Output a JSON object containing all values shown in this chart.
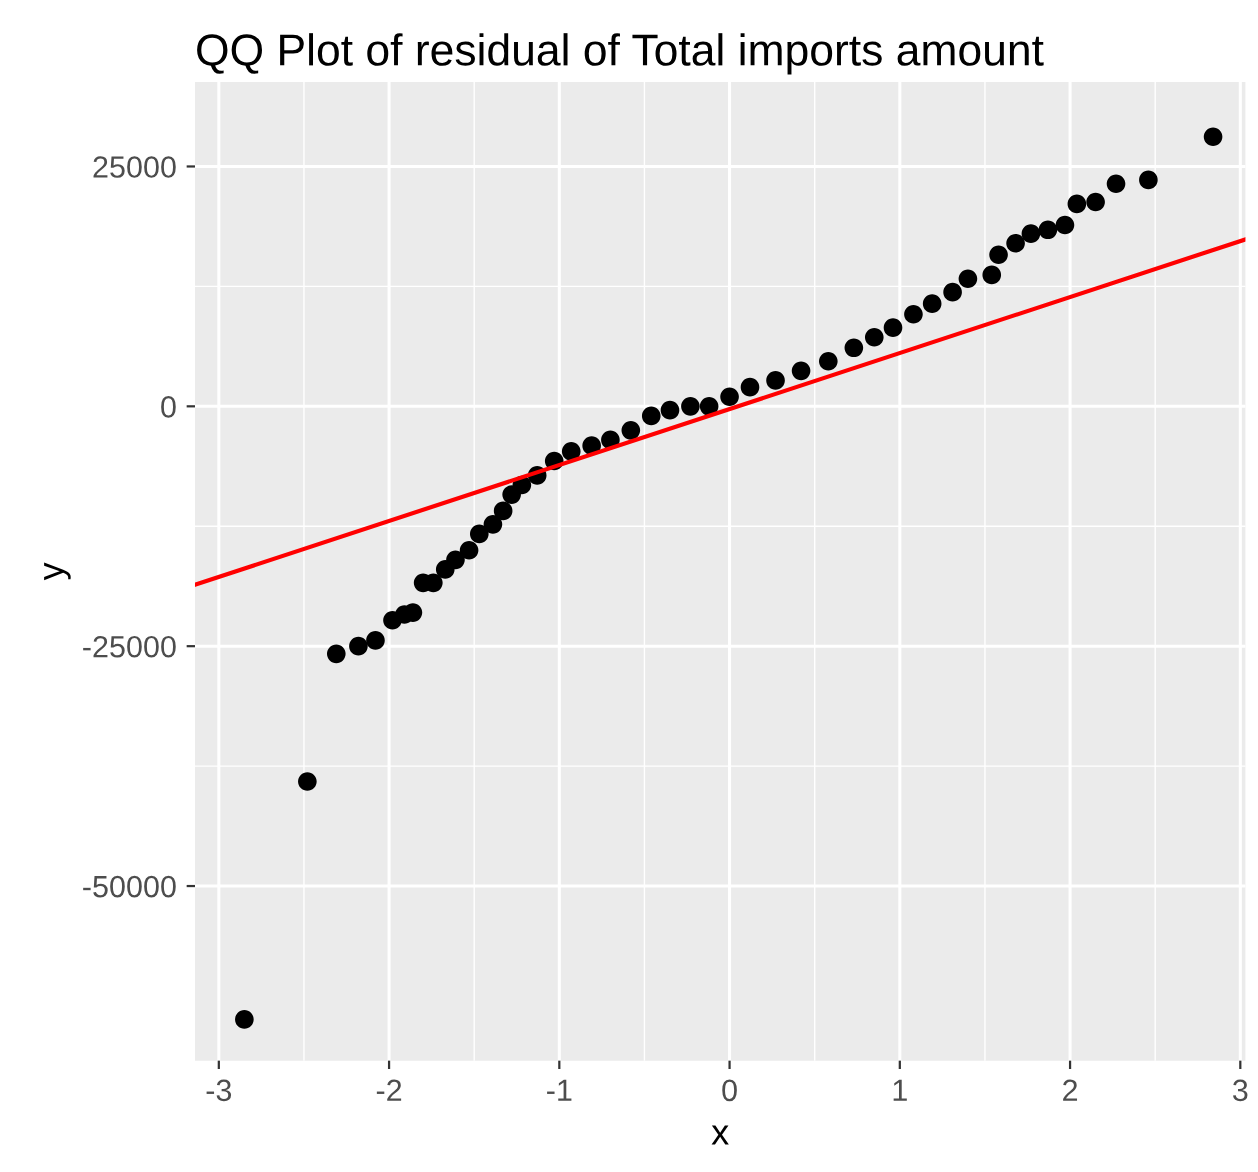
{
  "chart_data": {
    "type": "scatter",
    "title": "QQ Plot of residual of Total imports amount",
    "xlabel": "x",
    "ylabel": "y",
    "xlim": [
      -3.14,
      3.03
    ],
    "ylim": [
      -68200,
      33800
    ],
    "xticks": [
      -3,
      -2,
      -1,
      0,
      1,
      2,
      3
    ],
    "yticks": [
      -50000,
      -25000,
      0,
      25000
    ],
    "grid": true,
    "series": [
      {
        "marker": "circle",
        "color": "#000000",
        "x": [
          -2.85,
          -2.48,
          -2.31,
          -2.18,
          -2.08,
          -1.98,
          -1.91,
          -1.86,
          -1.8,
          -1.74,
          -1.67,
          -1.61,
          -1.53,
          -1.47,
          -1.39,
          -1.33,
          -1.28,
          -1.22,
          -1.13,
          -1.03,
          -0.93,
          -0.81,
          -0.7,
          -0.58,
          -0.46,
          -0.35,
          -0.23,
          -0.12,
          0.0,
          0.12,
          0.27,
          0.42,
          0.58,
          0.73,
          0.85,
          0.96,
          1.08,
          1.19,
          1.31,
          1.4,
          1.54,
          1.58,
          1.68,
          1.77,
          1.87,
          1.97,
          2.04,
          2.15,
          2.27,
          2.46,
          2.84
        ],
        "values": [
          -63900,
          -39100,
          -25800,
          -25000,
          -24400,
          -22300,
          -21700,
          -21500,
          -18400,
          -18400,
          -17000,
          -16000,
          -15000,
          -13300,
          -12300,
          -10900,
          -9200,
          -8200,
          -7200,
          -5700,
          -4700,
          -4100,
          -3500,
          -2500,
          -1000,
          -400,
          0,
          0,
          1000,
          2000,
          2700,
          3700,
          4700,
          6100,
          7200,
          8200,
          9600,
          10700,
          11900,
          13300,
          13700,
          15800,
          17000,
          18000,
          18400,
          18900,
          21100,
          21300,
          23200,
          23600,
          28100
        ]
      },
      {
        "type": "line",
        "color": "#ff0000",
        "x": [
          -3.14,
          3.03
        ],
        "values": [
          -18600,
          17400
        ]
      }
    ]
  }
}
